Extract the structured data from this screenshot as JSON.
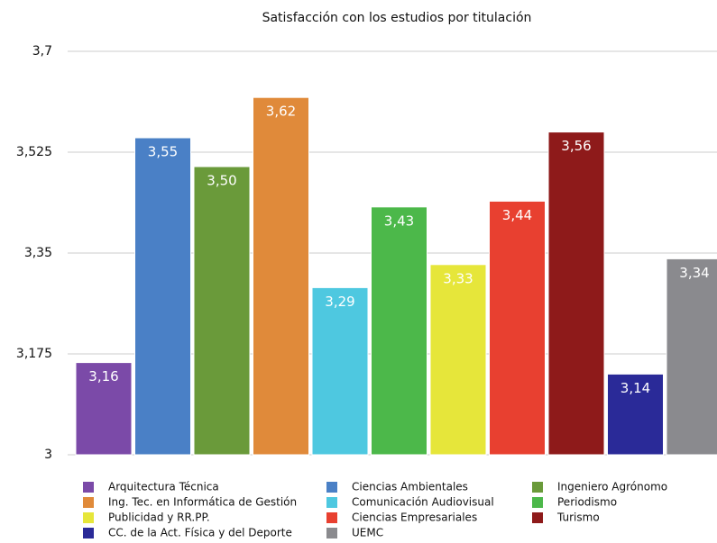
{
  "chart_data": {
    "type": "bar",
    "title": "Satisfacción con los estudios por titulación",
    "ylim": [
      3,
      3.7
    ],
    "yticks": [
      3,
      {
        "value": 3.175,
        "label": "3,175"
      },
      {
        "value": 3.35,
        "label": "3,35"
      },
      {
        "value": 3.525,
        "label": "3,525"
      },
      {
        "value": 3.7,
        "label": "3,7"
      }
    ],
    "grid": true,
    "legend": "bottom",
    "series": [
      {
        "name": "Arquitectura Técnica",
        "color": "#7b4aa8",
        "values": [
          3.16
        ],
        "value_labels": [
          "3,16"
        ]
      },
      {
        "name": "Ciencias Ambientales",
        "color": "#4a80c6",
        "values": [
          3.55
        ],
        "value_labels": [
          "3,55"
        ]
      },
      {
        "name": "Ingeniero Agrónomo",
        "color": "#6a9a3a",
        "values": [
          3.5
        ],
        "value_labels": [
          "3,50"
        ]
      },
      {
        "name": "Ing. Tec. en Informática de Gestión",
        "color": "#e08a3a",
        "values": [
          3.62
        ],
        "value_labels": [
          "3,62"
        ]
      },
      {
        "name": "Comunicación Audiovisual",
        "color": "#4ec8e0",
        "values": [
          3.29
        ],
        "value_labels": [
          "3,29"
        ]
      },
      {
        "name": "Periodismo",
        "color": "#4cb84a",
        "values": [
          3.43
        ],
        "value_labels": [
          "3,43"
        ]
      },
      {
        "name": "Publicidad y RR.PP.",
        "color": "#e6e63a",
        "values": [
          3.33
        ],
        "value_labels": [
          "3,33"
        ]
      },
      {
        "name": "Ciencias Empresariales",
        "color": "#e84030",
        "values": [
          3.44
        ],
        "value_labels": [
          "3,44"
        ]
      },
      {
        "name": "Turismo",
        "color": "#8e1a1a",
        "values": [
          3.56
        ],
        "value_labels": [
          "3,56"
        ]
      },
      {
        "name": "CC. de la Act. Física y del Deporte",
        "color": "#2a2a98",
        "values": [
          3.14
        ],
        "value_labels": [
          "3,14"
        ]
      },
      {
        "name": "UEMC",
        "color": "#8a8a8e",
        "values": [
          3.34
        ],
        "value_labels": [
          "3,34"
        ]
      }
    ]
  }
}
